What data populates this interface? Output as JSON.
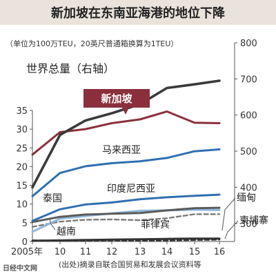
{
  "title": "新加坡在东南亚海港的地位下降",
  "note": "（单位为100万TEU，20英尺普通箱换算为1TEU）",
  "source": "(出处)摘录自联合国贸易和发展会议资料等",
  "logo": "日经中文网",
  "chart_data": {
    "type": "line",
    "x": [
      2005,
      2010,
      2011,
      2012,
      2013,
      2014,
      2015,
      2016
    ],
    "x_tick_labels": [
      "2005年",
      "10",
      "11",
      "12",
      "13",
      "14",
      "15",
      "16"
    ],
    "left_axis": {
      "ylim": [
        0,
        35
      ],
      "ticks": [
        0,
        5,
        10,
        15,
        20,
        25,
        30,
        35
      ]
    },
    "right_axis": {
      "ylim": [
        250,
        800
      ],
      "ticks": [
        300,
        400,
        500,
        600,
        700,
        800
      ]
    },
    "grid": false,
    "highlight_series": "新加坡",
    "series": [
      {
        "name": "世界总量（右轴）",
        "axis": "right",
        "color": "#3a3a3a",
        "values": [
          400,
          545,
          585,
          605,
          630,
          675,
          685,
          695
        ]
      },
      {
        "name": "新加坡",
        "axis": "left",
        "color": "#8b2f3c",
        "values": [
          23.2,
          29.2,
          30.0,
          31.6,
          32.6,
          34.7,
          31.7,
          31.6
        ]
      },
      {
        "name": "马来西亚",
        "axis": "left",
        "color": "#2f6fb0",
        "values": [
          12.1,
          18.3,
          20.1,
          20.9,
          21.4,
          22.3,
          24.1,
          24.6
        ]
      },
      {
        "name": "印度尼西亚",
        "axis": "left",
        "color": "#2f6fb0",
        "values": [
          5.5,
          8.6,
          9.9,
          10.4,
          11.3,
          11.8,
          12.2,
          12.5
        ]
      },
      {
        "name": "泰国",
        "axis": "left",
        "color": "#5b5b5b",
        "values": [
          5.2,
          6.6,
          7.2,
          7.4,
          7.6,
          8.3,
          8.9,
          9.0
        ]
      },
      {
        "name": "越南",
        "axis": "left",
        "color": "#8fb7dc",
        "values": [
          2.6,
          6.1,
          6.8,
          7.5,
          8.2,
          8.3,
          8.5,
          8.4
        ]
      },
      {
        "name": "菲律宾",
        "axis": "left",
        "color": "#7a7a7a",
        "dash": true,
        "values": [
          3.9,
          5.3,
          5.8,
          5.9,
          5.7,
          6.2,
          7.3,
          7.3
        ]
      },
      {
        "name": "缅甸",
        "axis": "left",
        "color": "#333333",
        "values": [
          0.2,
          0.3,
          0.4,
          0.5,
          0.6,
          0.7,
          0.8,
          0.8
        ]
      },
      {
        "name": "柬埔寨",
        "axis": "left",
        "color": "#333333",
        "dash": true,
        "values": [
          0.3,
          0.2,
          0.2,
          0.3,
          0.3,
          0.3,
          0.4,
          0.5
        ]
      }
    ]
  }
}
